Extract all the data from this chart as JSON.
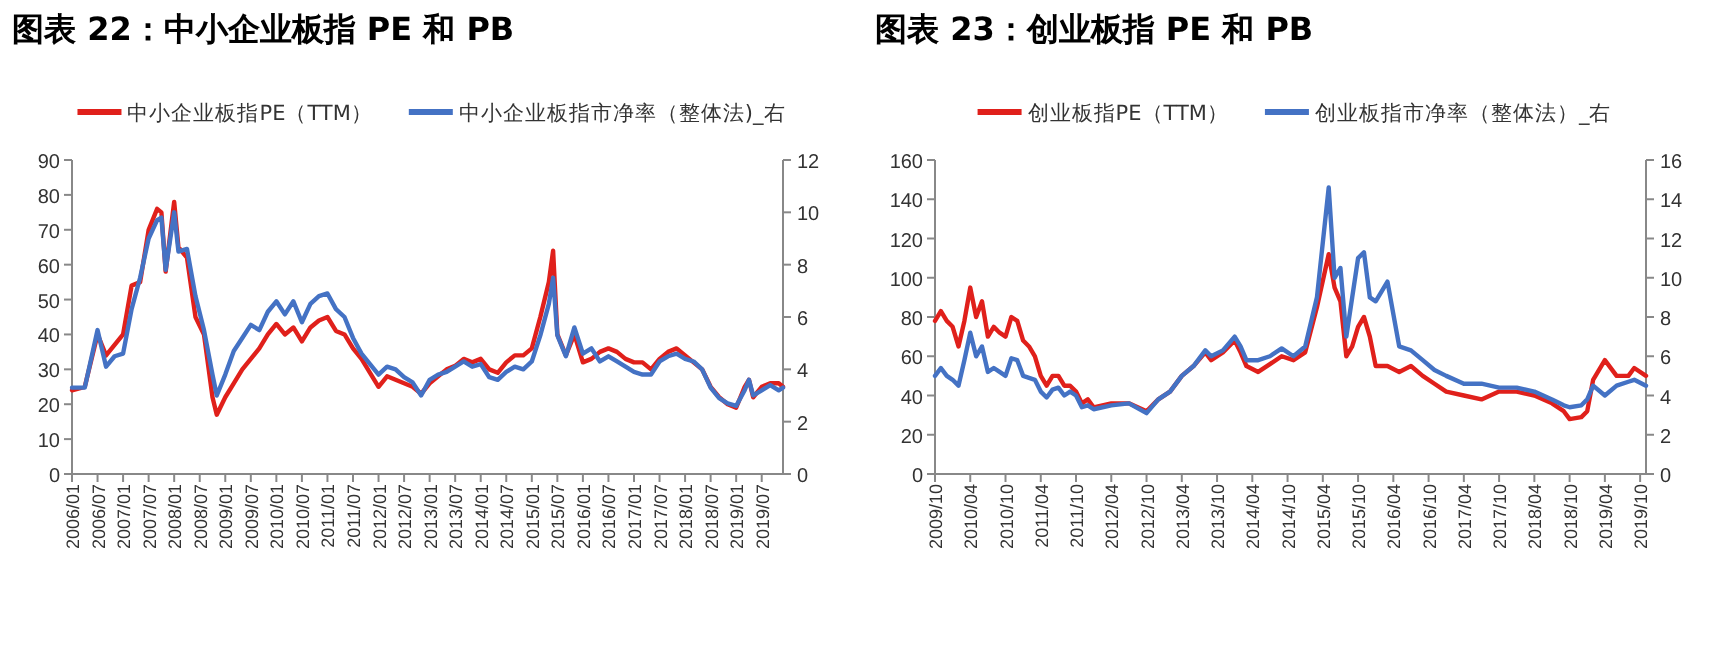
{
  "chart_data": [
    {
      "type": "line",
      "title": "图表 22：中小企业板指 PE 和 PB",
      "legend": "top",
      "grid": false,
      "marker": "none",
      "line_style": "solid",
      "x": [
        "2006-01",
        "2006-04",
        "2006-07",
        "2006-09",
        "2006-11",
        "2007-01",
        "2007-03",
        "2007-05",
        "2007-07",
        "2007-09",
        "2007-10",
        "2007-11",
        "2008-01",
        "2008-02",
        "2008-04",
        "2008-06",
        "2008-08",
        "2008-10",
        "2008-11",
        "2009-01",
        "2009-03",
        "2009-05",
        "2009-07",
        "2009-09",
        "2009-11",
        "2010-01",
        "2010-03",
        "2010-05",
        "2010-07",
        "2010-09",
        "2010-11",
        "2011-01",
        "2011-03",
        "2011-05",
        "2011-07",
        "2011-09",
        "2011-11",
        "2012-01",
        "2012-03",
        "2012-05",
        "2012-07",
        "2012-09",
        "2012-11",
        "2013-01",
        "2013-03",
        "2013-05",
        "2013-07",
        "2013-09",
        "2013-11",
        "2014-01",
        "2014-03",
        "2014-05",
        "2014-07",
        "2014-09",
        "2014-11",
        "2015-01",
        "2015-03",
        "2015-05",
        "2015-06",
        "2015-07",
        "2015-09",
        "2015-11",
        "2016-01",
        "2016-03",
        "2016-05",
        "2016-07",
        "2016-09",
        "2016-11",
        "2017-01",
        "2017-03",
        "2017-05",
        "2017-07",
        "2017-09",
        "2017-11",
        "2018-01",
        "2018-03",
        "2018-05",
        "2018-07",
        "2018-09",
        "2018-11",
        "2019-01",
        "2019-03",
        "2019-04",
        "2019-05",
        "2019-07",
        "2019-09",
        "2019-11",
        "2019-12"
      ],
      "xlim": [
        "2006-01",
        "2019-12"
      ],
      "xticks": [
        {
          "value": "2006-01",
          "label": "2006/01"
        },
        {
          "value": "2006-07",
          "label": "2006/07"
        },
        {
          "value": "2007-01",
          "label": "2007/01"
        },
        {
          "value": "2007-07",
          "label": "2007/07"
        },
        {
          "value": "2008-01",
          "label": "2008/01"
        },
        {
          "value": "2008-07",
          "label": "2008/07"
        },
        {
          "value": "2009-01",
          "label": "2009/01"
        },
        {
          "value": "2009-07",
          "label": "2009/07"
        },
        {
          "value": "2010-01",
          "label": "2010/01"
        },
        {
          "value": "2010-07",
          "label": "2010/07"
        },
        {
          "value": "2011-01",
          "label": "2011/01"
        },
        {
          "value": "2011-07",
          "label": "2011/07"
        },
        {
          "value": "2012-01",
          "label": "2012/01"
        },
        {
          "value": "2012-07",
          "label": "2012/07"
        },
        {
          "value": "2013-01",
          "label": "2013/01"
        },
        {
          "value": "2013-07",
          "label": "2013/07"
        },
        {
          "value": "2014-01",
          "label": "2014/01"
        },
        {
          "value": "2014-07",
          "label": "2014/07"
        },
        {
          "value": "2015-01",
          "label": "2015/01"
        },
        {
          "value": "2015-07",
          "label": "2015/07"
        },
        {
          "value": "2016-01",
          "label": "2016/01"
        },
        {
          "value": "2016-07",
          "label": "2016/07"
        },
        {
          "value": "2017-01",
          "label": "2017/01"
        },
        {
          "value": "2017-07",
          "label": "2017/07"
        },
        {
          "value": "2018-01",
          "label": "2018/01"
        },
        {
          "value": "2018-07",
          "label": "2018/07"
        },
        {
          "value": "2019-01",
          "label": "2019/01"
        },
        {
          "value": "2019-07",
          "label": "2019/07"
        }
      ],
      "ylim": [
        0,
        90
      ],
      "yticks": [
        0,
        10,
        20,
        30,
        40,
        50,
        60,
        70,
        80,
        90
      ],
      "y2lim": [
        0,
        12
      ],
      "y2ticks": [
        0,
        2,
        4,
        6,
        8,
        10,
        12
      ],
      "series": [
        {
          "name": "中小企业板指PE（TTM）",
          "color": "#e0201b",
          "values": [
            24,
            25,
            40,
            34,
            37,
            40,
            54,
            55,
            70,
            76,
            75,
            58,
            78,
            65,
            62,
            45,
            40,
            22,
            17,
            22,
            26,
            30,
            33,
            36,
            40,
            43,
            40,
            42,
            38,
            42,
            44,
            45,
            41,
            40,
            36,
            33,
            29,
            25,
            28,
            27,
            26,
            25,
            23,
            26,
            28,
            30,
            31,
            33,
            32,
            33,
            30,
            29,
            32,
            34,
            34,
            36,
            45,
            55,
            64,
            40,
            34,
            40,
            32,
            33,
            35,
            36,
            35,
            33,
            32,
            32,
            30,
            33,
            35,
            36,
            34,
            32,
            30,
            25,
            22,
            20,
            19,
            25,
            27,
            22,
            25,
            26,
            26,
            25
          ]
        },
        {
          "name": "中小企业板指市净率（整体法)_右",
          "color": "#4472c4",
          "axis": "y2",
          "values": [
            3.3,
            3.3,
            5.5,
            4.1,
            4.5,
            4.6,
            6.3,
            7.5,
            9.0,
            9.7,
            9.8,
            7.8,
            10.0,
            8.5,
            8.6,
            6.8,
            5.5,
            3.8,
            3.0,
            3.8,
            4.7,
            5.2,
            5.7,
            5.5,
            6.2,
            6.6,
            6.1,
            6.6,
            5.8,
            6.5,
            6.8,
            6.9,
            6.3,
            6.0,
            5.2,
            4.6,
            4.2,
            3.8,
            4.1,
            4.0,
            3.7,
            3.5,
            3.0,
            3.6,
            3.8,
            3.9,
            4.1,
            4.3,
            4.1,
            4.2,
            3.7,
            3.6,
            3.9,
            4.1,
            4.0,
            4.3,
            5.3,
            6.5,
            7.5,
            5.3,
            4.5,
            5.6,
            4.6,
            4.8,
            4.3,
            4.5,
            4.3,
            4.1,
            3.9,
            3.8,
            3.8,
            4.3,
            4.5,
            4.6,
            4.4,
            4.3,
            4.0,
            3.3,
            2.9,
            2.7,
            2.6,
            3.2,
            3.6,
            3.0,
            3.2,
            3.4,
            3.2,
            3.3
          ]
        }
      ]
    },
    {
      "type": "line",
      "title": "图表 23：创业板指 PE 和 PB",
      "legend": "top",
      "grid": false,
      "marker": "none",
      "line_style": "solid",
      "x": [
        "2009-10",
        "2009-11",
        "2009-12",
        "2010-01",
        "2010-02",
        "2010-03",
        "2010-04",
        "2010-05",
        "2010-06",
        "2010-07",
        "2010-08",
        "2010-09",
        "2010-10",
        "2010-11",
        "2010-12",
        "2011-01",
        "2011-02",
        "2011-03",
        "2011-04",
        "2011-05",
        "2011-06",
        "2011-07",
        "2011-08",
        "2011-09",
        "2011-10",
        "2011-11",
        "2011-12",
        "2012-01",
        "2012-04",
        "2012-07",
        "2012-10",
        "2012-12",
        "2013-02",
        "2013-04",
        "2013-06",
        "2013-08",
        "2013-09",
        "2013-11",
        "2014-01",
        "2014-02",
        "2014-03",
        "2014-05",
        "2014-07",
        "2014-09",
        "2014-11",
        "2015-01",
        "2015-03",
        "2015-05",
        "2015-06",
        "2015-07",
        "2015-08",
        "2015-09",
        "2015-10",
        "2015-11",
        "2015-12",
        "2016-01",
        "2016-03",
        "2016-05",
        "2016-07",
        "2016-09",
        "2016-11",
        "2017-01",
        "2017-04",
        "2017-07",
        "2017-10",
        "2018-01",
        "2018-04",
        "2018-07",
        "2018-09",
        "2018-10",
        "2018-12",
        "2019-01",
        "2019-02",
        "2019-04",
        "2019-06",
        "2019-08",
        "2019-09",
        "2019-11"
      ],
      "xlim": [
        "2009-10",
        "2019-11"
      ],
      "xticks": [
        {
          "value": "2009-10",
          "label": "2009/10"
        },
        {
          "value": "2010-04",
          "label": "2010/04"
        },
        {
          "value": "2010-10",
          "label": "2010/10"
        },
        {
          "value": "2011-04",
          "label": "2011/04"
        },
        {
          "value": "2011-10",
          "label": "2011/10"
        },
        {
          "value": "2012-04",
          "label": "2012/04"
        },
        {
          "value": "2012-10",
          "label": "2012/10"
        },
        {
          "value": "2013-04",
          "label": "2013/04"
        },
        {
          "value": "2013-10",
          "label": "2013/10"
        },
        {
          "value": "2014-04",
          "label": "2014/04"
        },
        {
          "value": "2014-10",
          "label": "2014/10"
        },
        {
          "value": "2015-04",
          "label": "2015/04"
        },
        {
          "value": "2015-10",
          "label": "2015/10"
        },
        {
          "value": "2016-04",
          "label": "2016/04"
        },
        {
          "value": "2016-10",
          "label": "2016/10"
        },
        {
          "value": "2017-04",
          "label": "2017/04"
        },
        {
          "value": "2017-10",
          "label": "2017/10"
        },
        {
          "value": "2018-04",
          "label": "2018/04"
        },
        {
          "value": "2018-10",
          "label": "2018/10"
        },
        {
          "value": "2019-04",
          "label": "2019/04"
        },
        {
          "value": "2019-10",
          "label": "2019/10"
        }
      ],
      "ylim": [
        0,
        160
      ],
      "yticks": [
        0,
        20,
        40,
        60,
        80,
        100,
        120,
        140,
        160
      ],
      "y2lim": [
        0,
        16
      ],
      "y2ticks": [
        0,
        2,
        4,
        6,
        8,
        10,
        12,
        14,
        16
      ],
      "series": [
        {
          "name": "创业板指PE（TTM）",
          "color": "#e0201b",
          "values": [
            78,
            83,
            78,
            75,
            65,
            78,
            95,
            80,
            88,
            70,
            75,
            72,
            70,
            80,
            78,
            68,
            65,
            60,
            50,
            45,
            50,
            50,
            45,
            45,
            42,
            36,
            38,
            34,
            36,
            36,
            32,
            38,
            42,
            50,
            55,
            62,
            58,
            62,
            68,
            62,
            55,
            52,
            56,
            60,
            58,
            62,
            85,
            112,
            95,
            88,
            60,
            65,
            75,
            80,
            70,
            55,
            55,
            52,
            55,
            50,
            46,
            42,
            40,
            38,
            42,
            42,
            40,
            36,
            32,
            28,
            29,
            32,
            48,
            58,
            50,
            50,
            54,
            50
          ]
        },
        {
          "name": "创业板指市净率（整体法）_右",
          "color": "#4472c4",
          "axis": "y2",
          "values": [
            5.0,
            5.4,
            5.0,
            4.8,
            4.5,
            5.8,
            7.2,
            6.0,
            6.5,
            5.2,
            5.4,
            5.2,
            5.0,
            5.9,
            5.8,
            5.0,
            4.9,
            4.8,
            4.2,
            3.9,
            4.3,
            4.4,
            4.0,
            4.2,
            4.0,
            3.4,
            3.5,
            3.3,
            3.5,
            3.6,
            3.1,
            3.8,
            4.2,
            5.0,
            5.5,
            6.3,
            6.0,
            6.3,
            7.0,
            6.5,
            5.8,
            5.8,
            6.0,
            6.4,
            6.0,
            6.5,
            9.0,
            14.6,
            10.0,
            10.5,
            7.0,
            9.0,
            11.0,
            11.3,
            9.0,
            8.8,
            9.8,
            6.5,
            6.3,
            5.8,
            5.3,
            5.0,
            4.6,
            4.6,
            4.4,
            4.4,
            4.2,
            3.8,
            3.5,
            3.4,
            3.5,
            3.8,
            4.5,
            4.0,
            4.5,
            4.7,
            4.8,
            4.5
          ]
        }
      ]
    }
  ]
}
